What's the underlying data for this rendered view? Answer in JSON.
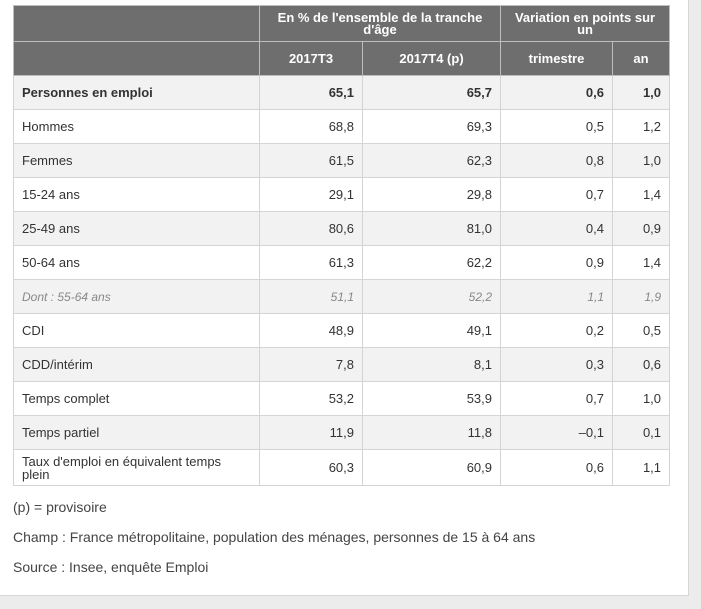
{
  "table": {
    "header_group_1": "En % de l'ensemble de la tranche d'âge",
    "header_group_2": "Variation en points sur un",
    "col_2017T3": "2017T3",
    "col_2017T4": "2017T4 (p)",
    "col_trimestre": "trimestre",
    "col_an": "an",
    "rows": [
      {
        "label": "Personnes en emploi",
        "t3": "65,1",
        "t4": "65,7",
        "trim": "0,6",
        "an": "1,0"
      },
      {
        "label": "Hommes",
        "t3": "68,8",
        "t4": "69,3",
        "trim": "0,5",
        "an": "1,2"
      },
      {
        "label": "Femmes",
        "t3": "61,5",
        "t4": "62,3",
        "trim": "0,8",
        "an": "1,0"
      },
      {
        "label": "15-24 ans",
        "t3": "29,1",
        "t4": "29,8",
        "trim": "0,7",
        "an": "1,4"
      },
      {
        "label": "25-49 ans",
        "t3": "80,6",
        "t4": "81,0",
        "trim": "0,4",
        "an": "0,9"
      },
      {
        "label": "50-64 ans",
        "t3": "61,3",
        "t4": "62,2",
        "trim": "0,9",
        "an": "1,4"
      },
      {
        "label": "Dont : 55-64 ans",
        "t3": "51,1",
        "t4": "52,2",
        "trim": "1,1",
        "an": "1,9"
      },
      {
        "label": "CDI",
        "t3": "48,9",
        "t4": "49,1",
        "trim": "0,2",
        "an": "0,5"
      },
      {
        "label": "CDD/intérim",
        "t3": "7,8",
        "t4": "8,1",
        "trim": "0,3",
        "an": "0,6"
      },
      {
        "label": "Temps complet",
        "t3": "53,2",
        "t4": "53,9",
        "trim": "0,7",
        "an": "1,0"
      },
      {
        "label": "Temps partiel",
        "t3": "11,9",
        "t4": "11,8",
        "trim": "–0,1",
        "an": "0,1"
      },
      {
        "label": "Taux d'emploi en équivalent temps plein",
        "t3": "60,3",
        "t4": "60,9",
        "trim": "0,6",
        "an": "1,1"
      }
    ]
  },
  "notes": {
    "provisoire": "(p) = provisoire",
    "champ": "Champ : France métropolitaine, population des ménages, personnes de 15 à 64 ans",
    "source": "Source : Insee, enquête Emploi"
  }
}
